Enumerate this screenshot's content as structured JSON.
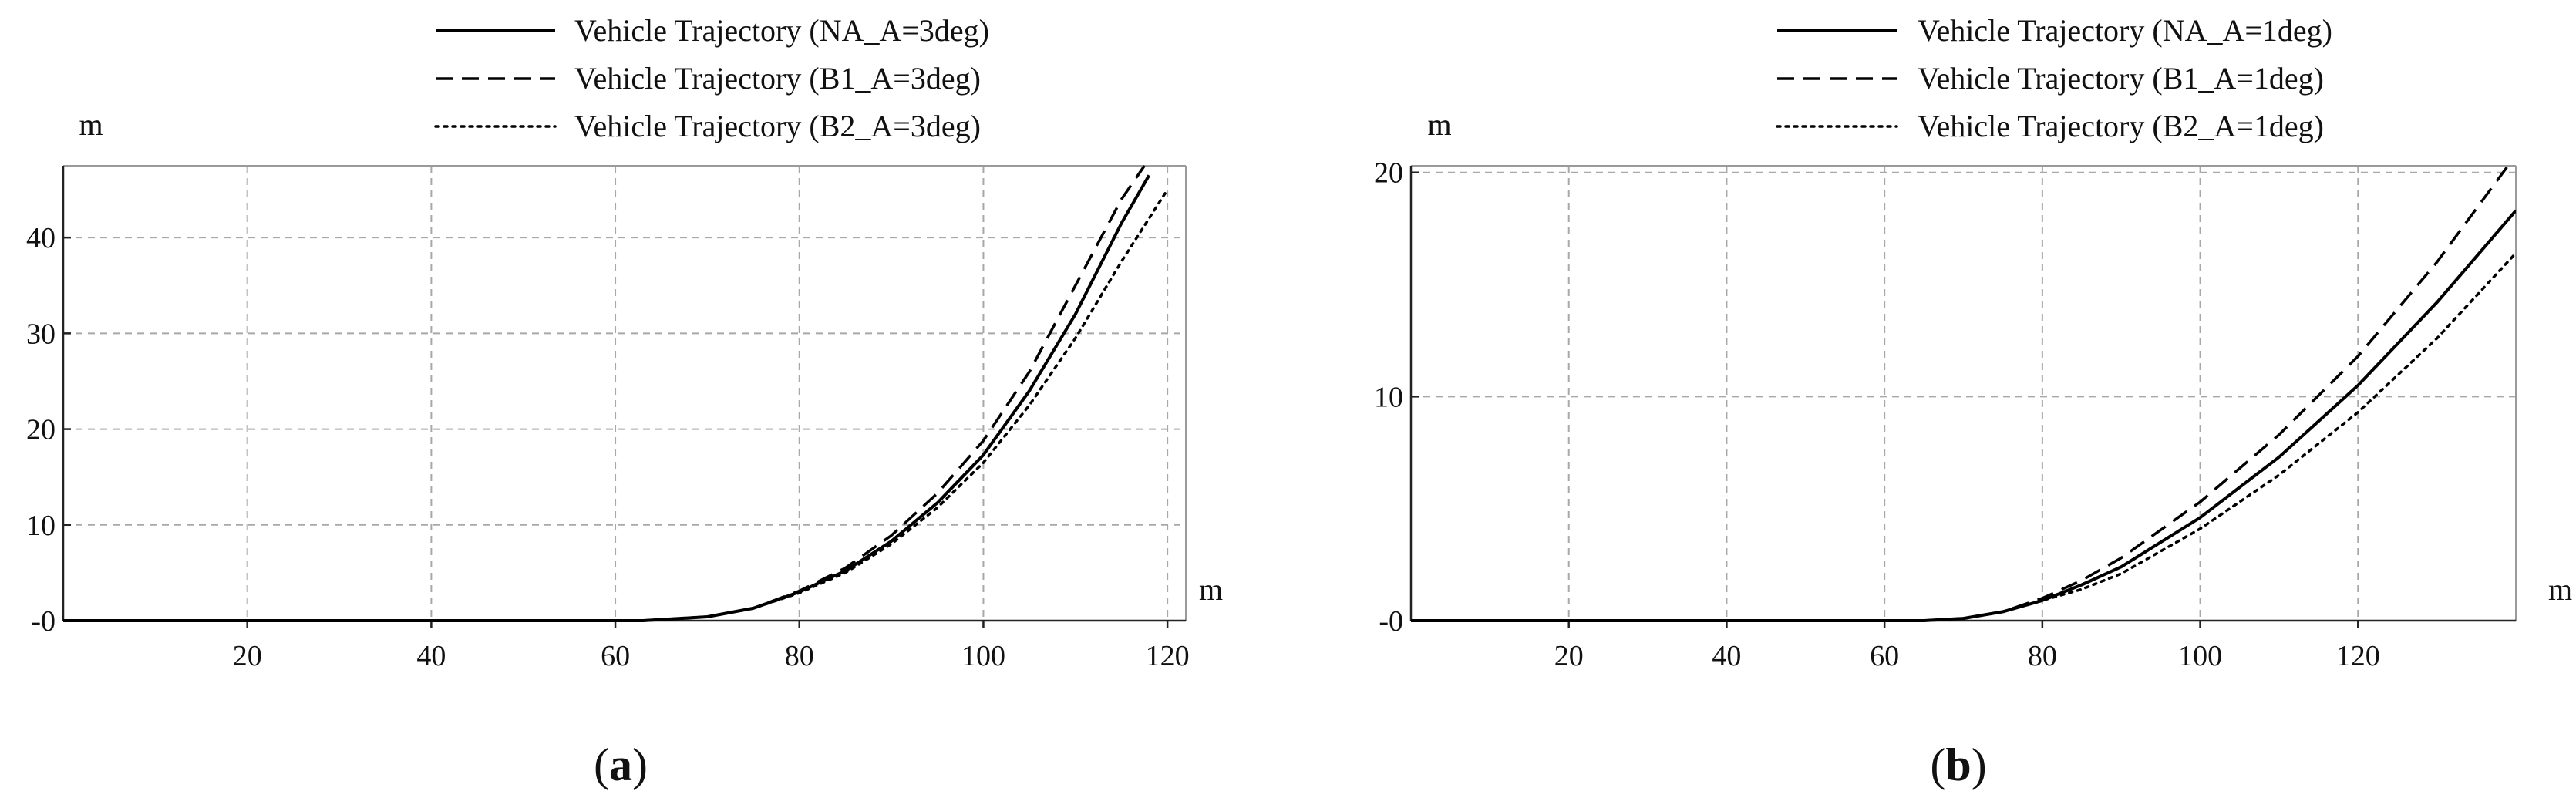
{
  "chart_data": [
    {
      "type": "line",
      "panel_label": "a",
      "xlabel": "m",
      "ylabel": "m",
      "xlim": [
        0,
        122
      ],
      "ylim": [
        0,
        47.5
      ],
      "xticks": [
        20,
        40,
        60,
        80,
        100,
        120
      ],
      "yticks": [
        0,
        10,
        20,
        30,
        40
      ],
      "ytick_labels": [
        "-0",
        "10",
        "20",
        "30",
        "40"
      ],
      "grid": true,
      "legend_position": "top",
      "series": [
        {
          "name": "Vehicle Trajectory (NA_A=3deg)",
          "style": "solid",
          "x": [
            0,
            63,
            70,
            75,
            80,
            85,
            90,
            95,
            100,
            105,
            110,
            115,
            118
          ],
          "y": [
            0,
            0,
            0.4,
            1.3,
            3.0,
            5.2,
            8.3,
            12.3,
            17.3,
            24,
            32,
            41.5,
            46.5
          ]
        },
        {
          "name": "Vehicle Trajectory (B1_A=3deg)",
          "style": "dashed",
          "x": [
            0,
            63,
            70,
            75,
            80,
            85,
            90,
            95,
            100,
            105,
            110,
            115,
            117.5
          ],
          "y": [
            0,
            0,
            0.4,
            1.3,
            3.1,
            5.5,
            8.9,
            13.3,
            18.8,
            26,
            35,
            44,
            47.5
          ]
        },
        {
          "name": "Vehicle Trajectory (B2_A=3deg)",
          "style": "dotted",
          "x": [
            0,
            63,
            70,
            75,
            80,
            85,
            90,
            95,
            100,
            105,
            110,
            115,
            120
          ],
          "y": [
            0,
            0,
            0.4,
            1.3,
            2.9,
            5.0,
            8.0,
            11.8,
            16.5,
            22.5,
            29.5,
            37.5,
            45
          ]
        }
      ]
    },
    {
      "type": "line",
      "panel_label": "b",
      "xlabel": "m",
      "ylabel": "m",
      "xlim": [
        0,
        140
      ],
      "ylim": [
        0,
        20.3
      ],
      "xticks": [
        20,
        40,
        60,
        80,
        100,
        120
      ],
      "yticks": [
        0,
        10,
        20
      ],
      "ytick_labels": [
        "-0",
        "10",
        "20"
      ],
      "grid": true,
      "legend_position": "top",
      "series": [
        {
          "name": "Vehicle Trajectory (NA_A=1deg)",
          "style": "solid",
          "x": [
            0,
            65,
            70,
            75,
            80,
            85,
            90,
            100,
            110,
            120,
            130,
            140
          ],
          "y": [
            0,
            0,
            0.1,
            0.4,
            0.9,
            1.6,
            2.4,
            4.6,
            7.3,
            10.5,
            14.2,
            18.3
          ]
        },
        {
          "name": "Vehicle Trajectory (B1_A=1deg)",
          "style": "dashed",
          "x": [
            0,
            65,
            70,
            75,
            80,
            85,
            90,
            100,
            110,
            120,
            130,
            139
          ],
          "y": [
            0,
            0,
            0.1,
            0.4,
            1.0,
            1.8,
            2.8,
            5.3,
            8.3,
            11.8,
            16.0,
            20.3
          ]
        },
        {
          "name": "Vehicle Trajectory (B2_A=1deg)",
          "style": "dotted",
          "x": [
            0,
            65,
            70,
            75,
            80,
            85,
            90,
            100,
            110,
            120,
            130,
            140
          ],
          "y": [
            0,
            0,
            0.1,
            0.4,
            0.9,
            1.4,
            2.1,
            4.1,
            6.5,
            9.3,
            12.6,
            16.4
          ]
        }
      ]
    }
  ],
  "captions": [
    {
      "open": "(",
      "letter": "a",
      "close": ")"
    },
    {
      "open": "(",
      "letter": "b",
      "close": ")"
    }
  ]
}
